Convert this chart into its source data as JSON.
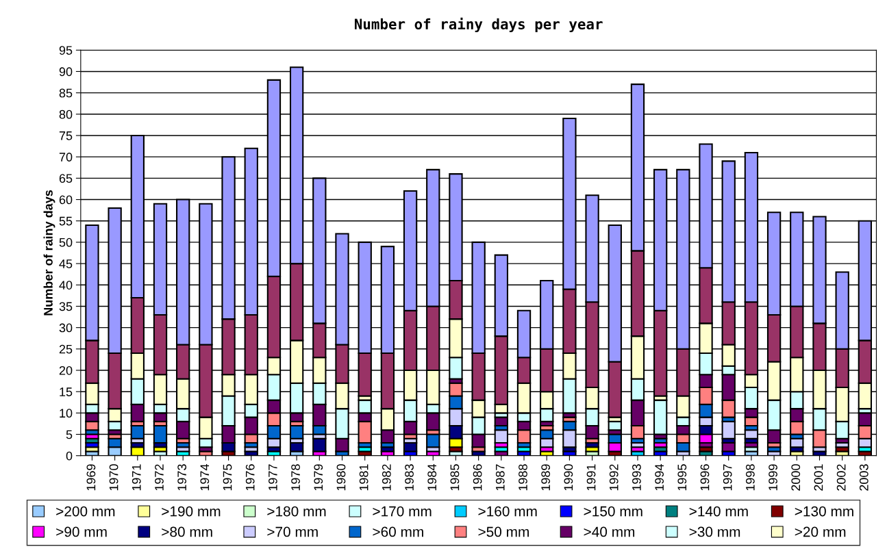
{
  "chart_data": {
    "type": "bar",
    "stacked": true,
    "title": "Number of rainy days per year",
    "ylabel": "Number of rainy days",
    "categories": [
      "1969",
      "1970",
      "1971",
      "1972",
      "1973",
      "1974",
      "1975",
      "1976",
      "1977",
      "1978",
      "1979",
      "1980",
      "1981",
      "1982",
      "1983",
      "1984",
      "1985",
      "1986",
      "1987",
      "1988",
      "1989",
      "1990",
      "1991",
      "1992",
      "1993",
      "1994",
      "1995",
      "1996",
      "1997",
      "1998",
      "1999",
      "2000",
      "2001",
      "2002",
      "2003"
    ],
    "ylim": [
      0,
      95
    ],
    "yticks": [
      0,
      5,
      10,
      15,
      20,
      25,
      30,
      35,
      40,
      45,
      50,
      55,
      60,
      65,
      70,
      75,
      80,
      85,
      90,
      95
    ],
    "grid": "y",
    "legend": "bottom",
    "series": [
      {
        "name": ">200 mm",
        "color": "#99ccff",
        "values": [
          1,
          2,
          0,
          0,
          0,
          0,
          0,
          0,
          0,
          1,
          0,
          0,
          0,
          0,
          0,
          0,
          0,
          0,
          0,
          0,
          0,
          0,
          0,
          0,
          0,
          0,
          0,
          0,
          0,
          1,
          0,
          0,
          0,
          0,
          0
        ]
      },
      {
        "name": ">190 mm",
        "color": "#ffff99",
        "values": [
          1,
          0,
          0,
          0,
          0,
          0,
          0,
          0,
          0,
          0,
          0,
          0,
          0,
          0,
          0,
          0,
          0,
          0,
          0,
          0,
          0,
          0,
          0,
          0,
          0,
          0,
          0,
          0,
          0,
          0,
          0,
          1,
          0,
          1,
          0
        ]
      },
      {
        "name": ">180 mm",
        "color": "#ccffcc",
        "values": [
          0,
          0,
          0,
          0,
          0,
          0,
          0,
          0,
          0,
          0,
          0,
          0,
          0,
          0,
          0,
          0,
          0,
          0,
          0,
          0,
          0,
          0,
          1,
          0,
          0,
          0,
          0,
          0,
          0,
          0,
          0,
          0,
          0,
          0,
          0
        ]
      },
      {
        "name": ">170 mm",
        "color": "#ccffff",
        "values": [
          0,
          0,
          0,
          1,
          0,
          0,
          0,
          0,
          0,
          0,
          0,
          0,
          0,
          0,
          0,
          0,
          1,
          0,
          0,
          0,
          0,
          0,
          0,
          0,
          0,
          0,
          0,
          0,
          0,
          1,
          0,
          0,
          0,
          0,
          0
        ]
      },
      {
        "name": ">160 mm",
        "color": "#00ccff",
        "values": [
          0,
          0,
          0,
          0,
          0,
          0,
          0,
          0,
          0,
          0,
          0,
          0,
          0,
          0,
          0,
          0,
          0,
          0,
          0,
          0,
          0,
          0,
          0,
          0,
          1,
          0,
          0,
          0,
          0,
          0,
          0,
          0,
          0,
          0,
          0
        ]
      },
      {
        "name": ">150 mm",
        "color": "#0000ff",
        "values": [
          1,
          0,
          0,
          0,
          0,
          0,
          0,
          0,
          0,
          0,
          0,
          0,
          0,
          0,
          1,
          0,
          0,
          0,
          0,
          1,
          0,
          1,
          0,
          0,
          0,
          1,
          0,
          0,
          1,
          0,
          0,
          0,
          0,
          0,
          0
        ]
      },
      {
        "name": ">140 mm",
        "color": "#008080",
        "values": [
          1,
          0,
          0,
          0,
          0,
          0,
          0,
          0,
          0,
          0,
          0,
          0,
          0,
          0,
          0,
          0,
          0,
          0,
          0,
          0,
          0,
          0,
          0,
          0,
          0,
          1,
          0,
          1,
          0,
          0,
          0,
          0,
          0,
          0,
          0
        ]
      },
      {
        "name": ">130 mm",
        "color": "#800000",
        "values": [
          0,
          0,
          0,
          0,
          0,
          0,
          1,
          0,
          0,
          0,
          0,
          0,
          1,
          0,
          0,
          0,
          1,
          0,
          0,
          0,
          0,
          0,
          0,
          1,
          0,
          0,
          0,
          1,
          0,
          0,
          0,
          0,
          0,
          1,
          1
        ]
      },
      {
        "color": "#800080",
        "values": [
          0,
          0,
          0,
          0,
          0,
          0,
          0,
          0,
          0,
          0,
          0,
          0,
          0,
          0,
          0,
          0,
          0,
          0,
          1,
          0,
          0,
          0,
          0,
          0,
          0,
          0,
          0,
          1,
          2,
          1,
          0,
          0,
          0,
          0,
          0
        ]
      },
      {
        "color": "#00ffff",
        "values": [
          0,
          0,
          0,
          0,
          1,
          0,
          0,
          0,
          1,
          0,
          0,
          0,
          1,
          0,
          0,
          0,
          0,
          0,
          1,
          1,
          0,
          0,
          0,
          0,
          0,
          0,
          0,
          0,
          0,
          0,
          0,
          0,
          0,
          0,
          1
        ]
      },
      {
        "color": "#ffff00",
        "values": [
          0,
          0,
          2,
          1,
          0,
          0,
          0,
          0,
          0,
          0,
          0,
          0,
          0,
          0,
          0,
          0,
          2,
          0,
          0,
          0,
          1,
          0,
          1,
          0,
          0,
          0,
          0,
          0,
          0,
          0,
          0,
          0,
          0,
          0,
          0
        ]
      },
      {
        "name": ">90 mm",
        "color": "#ff00ff",
        "values": [
          1,
          0,
          0,
          0,
          0,
          0,
          0,
          0,
          0,
          0,
          1,
          0,
          0,
          1,
          0,
          1,
          0,
          0,
          1,
          0,
          1,
          0,
          0,
          2,
          1,
          1,
          0,
          2,
          0,
          0,
          0,
          0,
          0,
          0,
          0
        ]
      },
      {
        "name": ">80 mm",
        "color": "#000080",
        "values": [
          0,
          0,
          1,
          1,
          0,
          0,
          2,
          1,
          1,
          2,
          3,
          0,
          0,
          1,
          2,
          0,
          3,
          1,
          0,
          0,
          0,
          1,
          1,
          0,
          0,
          0,
          0,
          2,
          1,
          1,
          0,
          1,
          1,
          0,
          0
        ]
      },
      {
        "name": ">70 mm",
        "color": "#ccccff",
        "values": [
          0,
          0,
          1,
          0,
          1,
          0,
          0,
          1,
          2,
          1,
          1,
          0,
          0,
          0,
          1,
          1,
          4,
          0,
          3,
          0,
          2,
          4,
          0,
          0,
          1,
          0,
          1,
          2,
          4,
          2,
          1,
          2,
          1,
          1,
          2
        ]
      },
      {
        "name": ">60 mm",
        "color": "#0066cc",
        "values": [
          1,
          2,
          3,
          4,
          1,
          0,
          0,
          1,
          3,
          3,
          2,
          1,
          1,
          1,
          0,
          3,
          3,
          0,
          1,
          1,
          2,
          2,
          0,
          2,
          1,
          1,
          2,
          3,
          1,
          1,
          1,
          1,
          0,
          0,
          0
        ]
      },
      {
        "name": ">50 mm",
        "color": "#ff8080",
        "values": [
          2,
          1,
          1,
          1,
          1,
          1,
          0,
          2,
          3,
          1,
          0,
          0,
          5,
          0,
          1,
          1,
          3,
          1,
          0,
          3,
          1,
          1,
          1,
          0,
          3,
          0,
          2,
          4,
          4,
          2,
          1,
          3,
          4,
          0,
          3
        ]
      },
      {
        "name": ">40 mm",
        "color": "#660066",
        "values": [
          2,
          1,
          4,
          2,
          4,
          1,
          4,
          4,
          3,
          2,
          5,
          3,
          2,
          3,
          3,
          4,
          1,
          3,
          2,
          2,
          1,
          1,
          3,
          1,
          6,
          1,
          2,
          3,
          6,
          2,
          3,
          3,
          0,
          1,
          3
        ]
      },
      {
        "name": ">30 mm",
        "color": "#ccffff",
        "values": [
          2,
          2,
          6,
          2,
          3,
          2,
          7,
          3,
          6,
          7,
          5,
          7,
          3,
          0,
          5,
          2,
          5,
          4,
          1,
          2,
          3,
          8,
          4,
          2,
          5,
          8,
          2,
          5,
          2,
          5,
          7,
          4,
          5,
          4,
          1
        ]
      },
      {
        "name": ">20 mm",
        "color": "#ffffcc",
        "values": [
          5,
          3,
          6,
          7,
          7,
          5,
          5,
          7,
          4,
          10,
          6,
          6,
          1,
          5,
          7,
          8,
          9,
          4,
          2,
          7,
          4,
          6,
          5,
          1,
          10,
          1,
          5,
          7,
          5,
          3,
          9,
          8,
          9,
          8,
          6
        ]
      },
      {
        "color": "#993366",
        "values": [
          10,
          13,
          13,
          14,
          8,
          17,
          13,
          14,
          19,
          18,
          8,
          9,
          10,
          13,
          14,
          15,
          9,
          11,
          16,
          6,
          10,
          15,
          20,
          13,
          20,
          20,
          11,
          13,
          10,
          17,
          11,
          12,
          11,
          9,
          10
        ]
      },
      {
        "color": "#9999ff",
        "values": [
          27,
          34,
          38,
          26,
          34,
          33,
          38,
          39,
          46,
          46,
          34,
          26,
          26,
          25,
          28,
          32,
          25,
          26,
          19,
          11,
          16,
          40,
          25,
          32,
          39,
          33,
          42,
          29,
          33,
          35,
          24,
          22,
          25,
          18,
          28
        ]
      }
    ]
  }
}
